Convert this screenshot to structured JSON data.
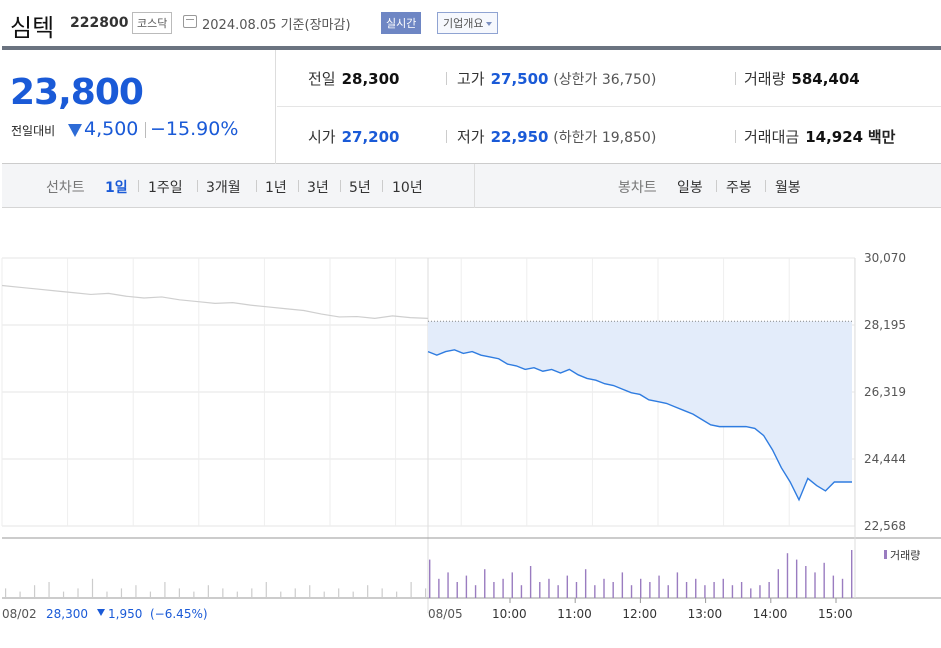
{
  "header": {
    "name": "심텍",
    "code": "222800",
    "market": "코스닥",
    "date": "2024.08.05",
    "basis": "기준(장마감)",
    "live_label": "실시간",
    "company_label": "기업개요"
  },
  "price": {
    "current": "23,800",
    "change_label": "전일대비",
    "change": "4,500",
    "change_rate": "−15.90%",
    "direction": "down"
  },
  "stats": {
    "prev_label": "전일",
    "prev": "28,300",
    "high_label": "고가",
    "high": "27,500",
    "upper_limit": "(상한가 36,750)",
    "volume_label": "거래량",
    "volume": "584,404",
    "open_label": "시가",
    "open": "27,200",
    "low_label": "저가",
    "low": "22,950",
    "lower_limit": "(하한가 19,850)",
    "amount_label": "거래대금",
    "amount": "14,924",
    "amount_unit": "백만"
  },
  "period_bar": {
    "line_label": "선차트",
    "periods": [
      "1일",
      "1주일",
      "3개월",
      "1년",
      "3년",
      "5년",
      "10년"
    ],
    "active_period": "1일",
    "candle_label": "봉차트",
    "candles": [
      "일봉",
      "주봉",
      "월봉"
    ]
  },
  "colors": {
    "accent": "#1a5ad7",
    "line_today": "#2f7ce0",
    "line_prev": "#cfcfcf",
    "fill_today": "#e3ecfa",
    "volume_today": "#9a7cc0",
    "volume_prev": "#cccccc"
  },
  "chart_data": {
    "type": "line",
    "title": "",
    "y_ticks": [
      "30,070",
      "28,195",
      "26,319",
      "24,444",
      "22,568"
    ],
    "ylim": [
      22568,
      30070
    ],
    "reference_line": 28300,
    "prev_session": {
      "date": "08/02",
      "close": "28,300",
      "change": "1,950",
      "change_rate": "(−6.45%)",
      "values": [
        29300,
        29250,
        29200,
        29150,
        29100,
        29050,
        29080,
        29000,
        28950,
        28980,
        28900,
        28850,
        28800,
        28820,
        28750,
        28700,
        28650,
        28600,
        28500,
        28420,
        28430,
        28380,
        28450,
        28400,
        28380
      ]
    },
    "today_session": {
      "date": "08/05",
      "time_labels": [
        "10:00",
        "11:00",
        "12:00",
        "13:00",
        "14:00",
        "15:00"
      ],
      "values": [
        27450,
        27350,
        27450,
        27500,
        27400,
        27450,
        27350,
        27300,
        27250,
        27100,
        27050,
        26950,
        27000,
        26900,
        26950,
        26850,
        26950,
        26800,
        26700,
        26650,
        26550,
        26500,
        26400,
        26300,
        26250,
        26100,
        26050,
        26000,
        25900,
        25800,
        25700,
        25550,
        25400,
        25350,
        25350,
        25350,
        25350,
        25300,
        25100,
        24700,
        24200,
        23800,
        23300,
        23900,
        23700,
        23550,
        23800,
        23800,
        23800
      ]
    },
    "volume_label": "거래량",
    "volume_prev": [
      3,
      2,
      4,
      5,
      2,
      3,
      6,
      2,
      3,
      4,
      2,
      5,
      3,
      2,
      4,
      3,
      2,
      3,
      5,
      2,
      3,
      4,
      2,
      3,
      2,
      4,
      3,
      2,
      5,
      3
    ],
    "volume_today": [
      12,
      6,
      8,
      5,
      7,
      4,
      9,
      5,
      6,
      8,
      4,
      10,
      5,
      6,
      4,
      7,
      5,
      9,
      4,
      6,
      5,
      8,
      4,
      6,
      5,
      7,
      4,
      8,
      5,
      6,
      4,
      5,
      6,
      4,
      5,
      3,
      4,
      5,
      9,
      14,
      12,
      10,
      8,
      11,
      7,
      6,
      15
    ]
  }
}
